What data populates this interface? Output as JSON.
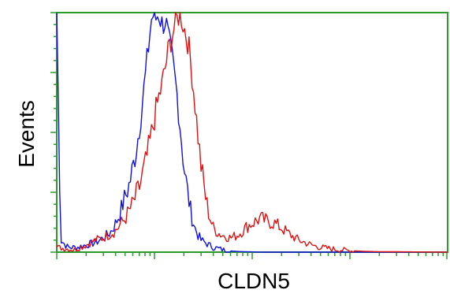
{
  "chart_data": {
    "type": "line",
    "title": "",
    "xlabel": "CLDN5",
    "ylabel": "Events",
    "x_scale": "log",
    "xlim": [
      1,
      10000
    ],
    "ylim": [
      0,
      100
    ],
    "grid": false,
    "legend": "none",
    "frame_color": "#2e9a2e",
    "series": [
      {
        "color": "#1010e0",
        "x": [
          1.0,
          1.1,
          1.3,
          1.6,
          2.0,
          2.5,
          3.0,
          3.5,
          4.0,
          4.5,
          5.0,
          5.5,
          6.0,
          6.5,
          7.0,
          7.5,
          8.0,
          8.5,
          9.0,
          9.5,
          10,
          11,
          12,
          13,
          14,
          15,
          16,
          17,
          18,
          19,
          20,
          22,
          24,
          26,
          28,
          30,
          33,
          36,
          40,
          45,
          50,
          60,
          70,
          80,
          100,
          130,
          200,
          500,
          1000,
          10000
        ],
        "y": [
          100,
          5,
          2,
          2,
          3,
          4,
          6,
          8,
          12,
          17,
          23,
          28,
          35,
          43,
          52,
          62,
          72,
          82,
          92,
          100,
          96,
          100,
          95,
          97,
          88,
          82,
          74,
          66,
          56,
          46,
          36,
          24,
          15,
          10,
          7,
          5,
          4,
          3,
          2,
          1.5,
          1,
          0.5,
          0.3,
          0.2,
          0.1,
          0,
          0,
          0,
          0,
          0
        ]
      },
      {
        "color": "#e01010",
        "x": [
          1.0,
          1.5,
          2.0,
          2.5,
          3.0,
          4.0,
          5.0,
          6.0,
          7.0,
          8.0,
          9.0,
          10,
          11,
          12,
          13,
          14,
          15,
          16,
          17,
          18,
          19,
          20,
          22,
          24,
          26,
          28,
          30,
          33,
          36,
          40,
          45,
          50,
          60,
          70,
          80,
          90,
          100,
          120,
          140,
          170,
          200,
          250,
          300,
          400,
          500,
          700,
          1000,
          1500,
          2000,
          5000,
          10000
        ],
        "y": [
          2,
          1,
          3,
          5,
          6,
          9,
          14,
          20,
          27,
          36,
          46,
          56,
          64,
          70,
          78,
          85,
          90,
          94,
          97,
          100,
          98,
          94,
          88,
          76,
          62,
          48,
          36,
          24,
          16,
          10,
          8,
          7,
          6,
          7,
          9,
          11,
          12,
          14,
          13,
          12,
          10,
          7,
          5,
          3,
          2,
          1.2,
          0.6,
          0.3,
          0.2,
          0.1,
          0
        ]
      }
    ]
  }
}
